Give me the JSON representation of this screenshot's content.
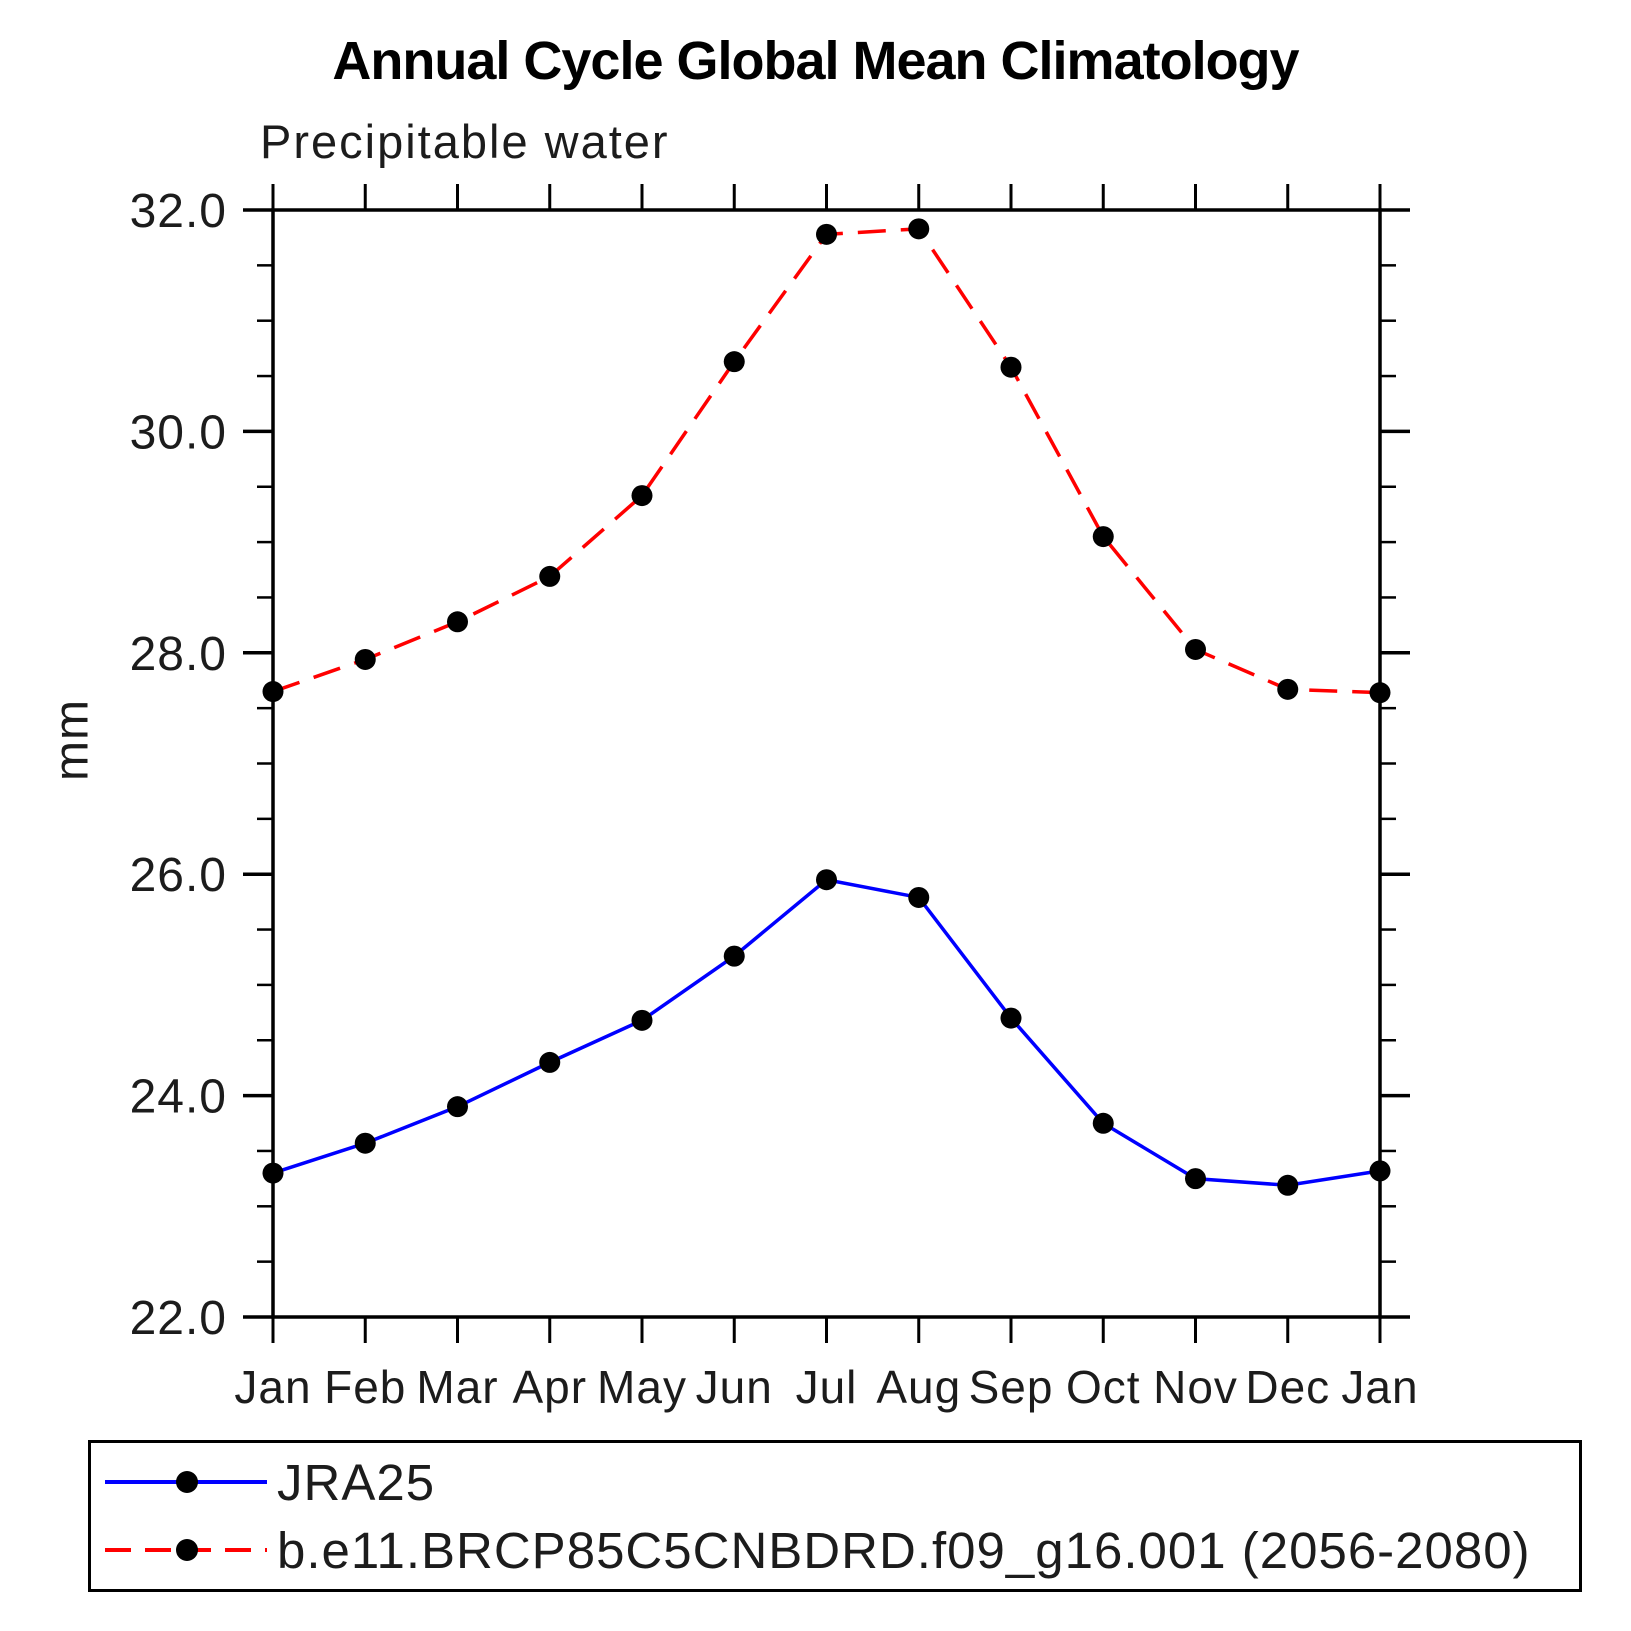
{
  "title": "Annual Cycle Global Mean Climatology",
  "subtitle": "Precipitable water",
  "ylabel": "mm",
  "chart_data": {
    "type": "line",
    "categories": [
      "Jan",
      "Feb",
      "Mar",
      "Apr",
      "May",
      "Jun",
      "Jul",
      "Aug",
      "Sep",
      "Oct",
      "Nov",
      "Dec",
      "Jan"
    ],
    "series": [
      {
        "name": "JRA25",
        "color": "#0000ff",
        "line_style": "solid",
        "marker": "filled-circle",
        "marker_color": "#000000",
        "values": [
          23.3,
          23.57,
          23.9,
          24.3,
          24.68,
          25.26,
          25.95,
          25.79,
          24.7,
          23.75,
          23.25,
          23.19,
          23.32
        ]
      },
      {
        "name": "b.e11.BRCP85C5CNBDRD.f09_g16.001 (2056-2080)",
        "color": "#ff0000",
        "line_style": "dashed",
        "marker": "filled-circle",
        "marker_color": "#000000",
        "values": [
          27.65,
          27.94,
          28.28,
          28.69,
          29.42,
          30.63,
          31.78,
          31.83,
          30.58,
          29.05,
          28.03,
          27.67,
          27.64
        ]
      }
    ],
    "xlabel": "",
    "ylim": [
      22.0,
      32.0
    ],
    "ytick_major_values": [
      22.0,
      24.0,
      26.0,
      28.0,
      30.0,
      32.0
    ],
    "ytick_major_labels": [
      "22.0",
      "24.0",
      "26.0",
      "28.0",
      "30.0",
      "32.0"
    ],
    "ytick_minor_step": 0.5,
    "grid": false,
    "frame": "box-with-outward-ticks",
    "legend_position": "bottom-left",
    "axis_color": "#000000"
  }
}
